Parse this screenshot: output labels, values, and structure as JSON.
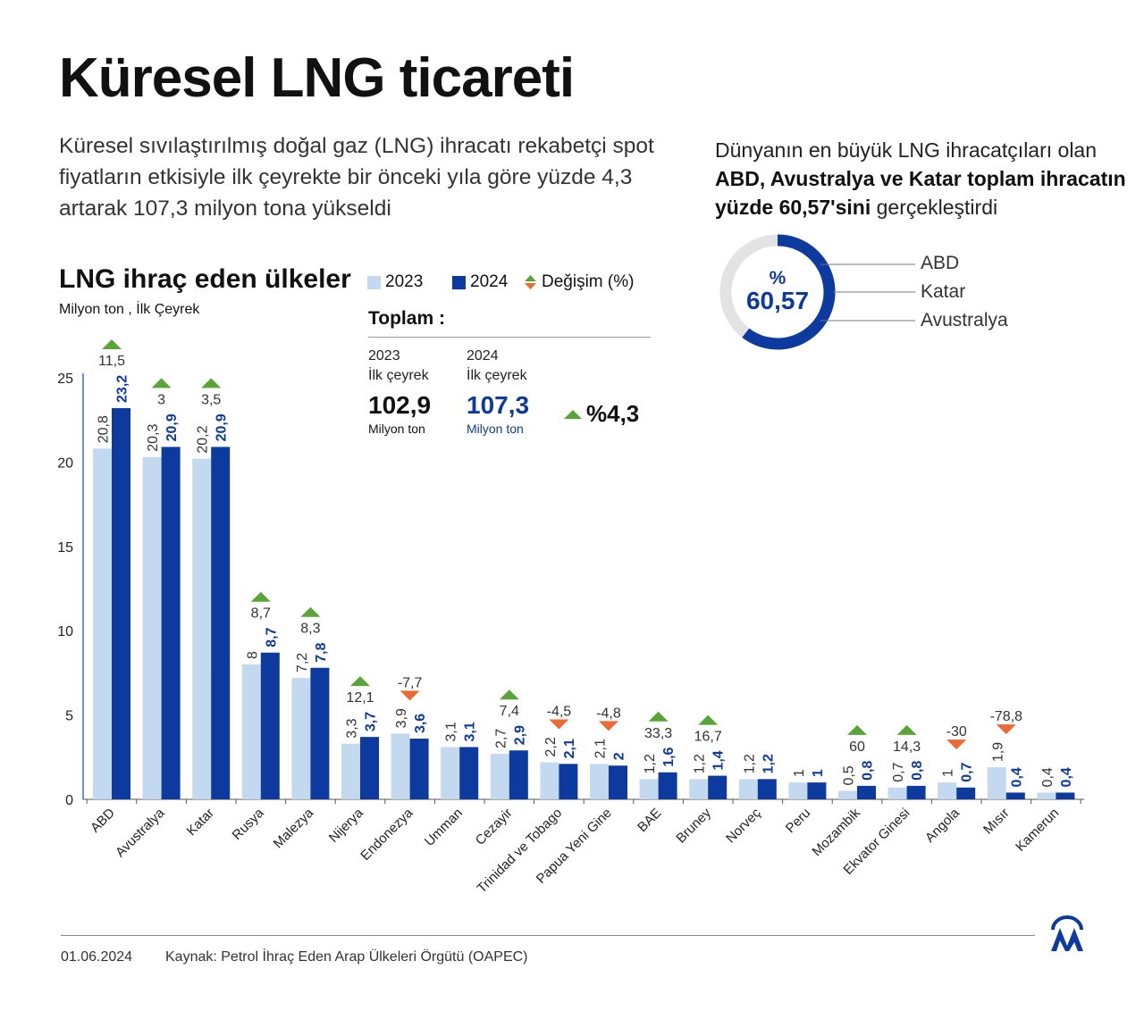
{
  "title": "Küresel LNG ticareti",
  "subtitle": "Küresel sıvılaştırılmış doğal gaz (LNG) ihracatı rekabetçi spot fiyatların etkisiyle ilk çeyrekte bir önceki yıla göre yüzde 4,3 artarak 107,3 milyon tona yükseldi",
  "right_text": {
    "part1": "Dünyanın en büyük LNG ihracatçıları olan ",
    "bold": "ABD, Avustralya ve Katar toplam ihracatın yüzde 60,57'sini",
    "part2": " gerçekleştirdi"
  },
  "donut": {
    "symbol": "%",
    "value_label": "60,57",
    "value": 60.57,
    "labels": [
      "ABD",
      "Katar",
      "Avustralya"
    ],
    "colors": {
      "share": "#0d3a9e",
      "rest": "#e3e3e3"
    }
  },
  "legend": {
    "y2023": "2023",
    "y2024": "2024",
    "change": "Değişim (%)"
  },
  "totals": {
    "title": "Toplam :",
    "col2023": {
      "year": "2023",
      "period": "İlk çeyrek",
      "value": "102,9",
      "unit": "Milyon ton"
    },
    "col2024": {
      "year": "2024",
      "period": "İlk çeyrek",
      "value": "107,3",
      "unit": "Milyon ton"
    },
    "change": "%4,3"
  },
  "footer": {
    "date": "01.06.2024",
    "source": "Kaynak: Petrol İhraç Eden Arap Ülkeleri Örgütü (OAPEC)",
    "logo": "AA"
  },
  "colors": {
    "c2023": "#c3d9f0",
    "c2024": "#0d3a9e",
    "up": "#5aa53a",
    "down": "#ee6a35"
  },
  "chart_data": {
    "type": "bar",
    "title": "LNG ihraç eden ülkeler",
    "ylabel": "Milyon ton , İlk Çeyrek",
    "ylim": [
      0,
      25
    ],
    "yticks": [
      0,
      5,
      10,
      15,
      20,
      25
    ],
    "grid": false,
    "categories": [
      "ABD",
      "Avustralya",
      "Katar",
      "Rusya",
      "Malezya",
      "Nijerya",
      "Endonezya",
      "Umman",
      "Cezayir",
      "Trinidad ve Tobago",
      "Papua Yeni Gine",
      "BAE",
      "Bruney",
      "Norveç",
      "Peru",
      "Mozambik",
      "Ekvator Ginesi",
      "Angola",
      "Mısır",
      "Kamerun"
    ],
    "series": [
      {
        "name": "2023",
        "values": [
          20.8,
          20.3,
          20.2,
          8,
          7.2,
          3.3,
          3.9,
          3.1,
          2.7,
          2.2,
          2.1,
          1.2,
          1.2,
          1.2,
          1,
          0.5,
          0.7,
          1,
          1.9,
          0.4
        ]
      },
      {
        "name": "2024",
        "values": [
          23.2,
          20.9,
          20.9,
          8.7,
          7.8,
          3.7,
          3.6,
          3.1,
          2.9,
          2.1,
          2,
          1.6,
          1.4,
          1.2,
          1,
          0.8,
          0.8,
          0.7,
          0.4,
          0.4
        ]
      }
    ],
    "change_pct": {
      "name": "Değişim (%)",
      "values": [
        11.5,
        3,
        3.5,
        8.7,
        8.3,
        12.1,
        -7.7,
        null,
        7.4,
        -4.5,
        -4.8,
        33.3,
        16.7,
        null,
        null,
        60,
        14.3,
        -30,
        -78.8,
        null
      ]
    }
  }
}
